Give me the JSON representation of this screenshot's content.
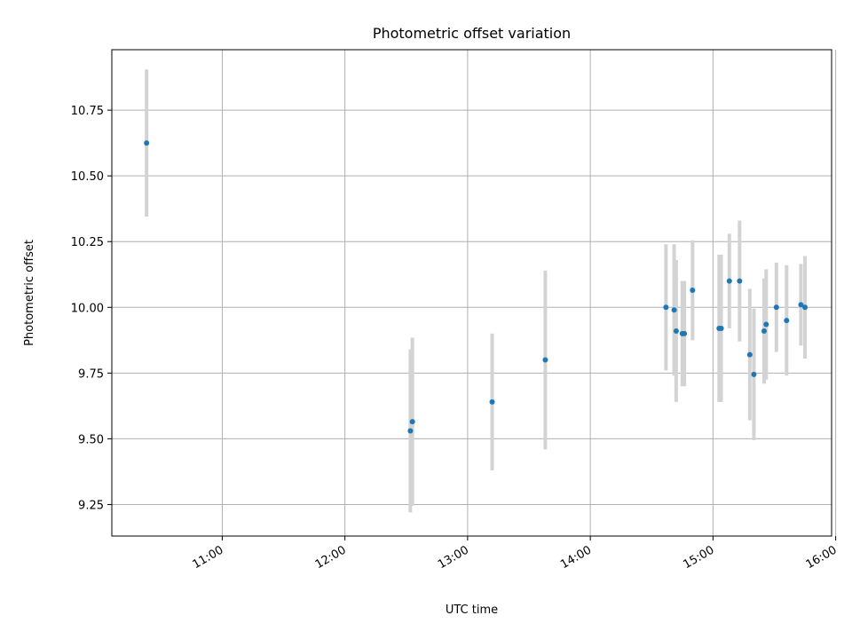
{
  "chart_data": {
    "type": "scatter",
    "title": "Photometric offset variation",
    "xlabel": "UTC time",
    "ylabel": "Photometric offset",
    "x_ticks": [
      "11:00",
      "12:00",
      "13:00",
      "14:00",
      "15:00",
      "16:00"
    ],
    "y_ticks": [
      "9.25",
      "9.50",
      "9.75",
      "10.00",
      "10.25",
      "10.50",
      "10.75"
    ],
    "xlim": [
      "10:06",
      "15:58"
    ],
    "ylim": [
      9.13,
      10.98
    ],
    "grid": true,
    "colors": {
      "marker": "#1f77b4",
      "errorbar": "#d3d3d3"
    },
    "points": [
      {
        "x": "10:23",
        "y": 10.625,
        "yerr": 0.28
      },
      {
        "x": "12:32",
        "y": 9.53,
        "yerr": 0.31
      },
      {
        "x": "12:33",
        "y": 9.565,
        "yerr": 0.32
      },
      {
        "x": "13:12",
        "y": 9.64,
        "yerr": 0.26
      },
      {
        "x": "13:38",
        "y": 9.8,
        "yerr": 0.34
      },
      {
        "x": "14:37",
        "y": 10.0,
        "yerr": 0.24
      },
      {
        "x": "14:41",
        "y": 9.99,
        "yerr": 0.25
      },
      {
        "x": "14:42",
        "y": 9.91,
        "yerr": 0.27
      },
      {
        "x": "14:45",
        "y": 9.9,
        "yerr": 0.2
      },
      {
        "x": "14:46",
        "y": 9.9,
        "yerr": 0.2
      },
      {
        "x": "14:50",
        "y": 10.065,
        "yerr": 0.19
      },
      {
        "x": "15:03",
        "y": 9.92,
        "yerr": 0.28
      },
      {
        "x": "15:04",
        "y": 9.92,
        "yerr": 0.28
      },
      {
        "x": "15:08",
        "y": 10.1,
        "yerr": 0.18
      },
      {
        "x": "15:13",
        "y": 10.1,
        "yerr": 0.23
      },
      {
        "x": "15:18",
        "y": 9.82,
        "yerr": 0.25
      },
      {
        "x": "15:20",
        "y": 9.745,
        "yerr": 0.25
      },
      {
        "x": "15:25",
        "y": 9.91,
        "yerr": 0.2
      },
      {
        "x": "15:26",
        "y": 9.935,
        "yerr": 0.21
      },
      {
        "x": "15:31",
        "y": 10.0,
        "yerr": 0.17
      },
      {
        "x": "15:36",
        "y": 9.95,
        "yerr": 0.21
      },
      {
        "x": "15:43",
        "y": 10.01,
        "yerr": 0.155
      },
      {
        "x": "15:45",
        "y": 10.0,
        "yerr": 0.195
      }
    ]
  }
}
